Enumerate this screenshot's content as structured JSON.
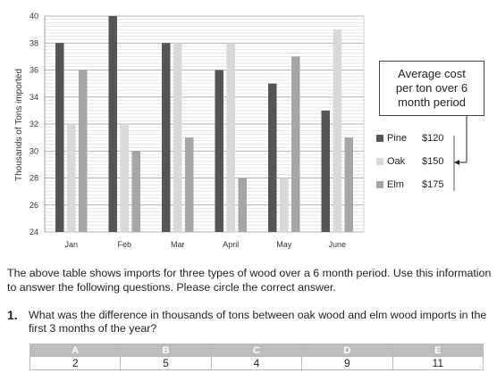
{
  "chart_data": {
    "type": "bar",
    "ylabel": "Thousands of Tons imported",
    "xlabel": "",
    "title": "",
    "ylim": [
      24,
      40
    ],
    "yticks": [
      24,
      26,
      28,
      30,
      32,
      34,
      36,
      38,
      40
    ],
    "grid": true,
    "categories": [
      "Jan",
      "Feb",
      "Mar",
      "April",
      "May",
      "June"
    ],
    "series": [
      {
        "name": "Pine",
        "color": "#555555",
        "values": [
          38,
          40,
          38,
          36,
          35,
          33
        ]
      },
      {
        "name": "Oak",
        "color": "#d9d9d9",
        "values": [
          32,
          32,
          38,
          38,
          28,
          39
        ]
      },
      {
        "name": "Elm",
        "color": "#a6a6a6",
        "values": [
          36,
          30,
          31,
          28,
          37,
          31
        ]
      }
    ],
    "legend": {
      "placement": "right",
      "entries": [
        {
          "name": "Pine",
          "price": "$120"
        },
        {
          "name": "Oak",
          "price": "$150"
        },
        {
          "name": "Elm",
          "price": "$175"
        }
      ]
    },
    "callout": {
      "lines": [
        "Average cost",
        "per ton over 6",
        "month period"
      ]
    }
  },
  "instructions": "The above table shows imports for three types of wood over a 6 month period. Use this information to answer the following questions. Please circle the correct answer.",
  "question": {
    "number": "1.",
    "text": "What was the difference in thousands of tons between oak wood and elm wood imports in the first 3 months of the year?",
    "options": [
      {
        "letter": "A",
        "value": "2"
      },
      {
        "letter": "B",
        "value": "5"
      },
      {
        "letter": "C",
        "value": "4"
      },
      {
        "letter": "D",
        "value": "9"
      },
      {
        "letter": "E",
        "value": "11"
      }
    ]
  }
}
